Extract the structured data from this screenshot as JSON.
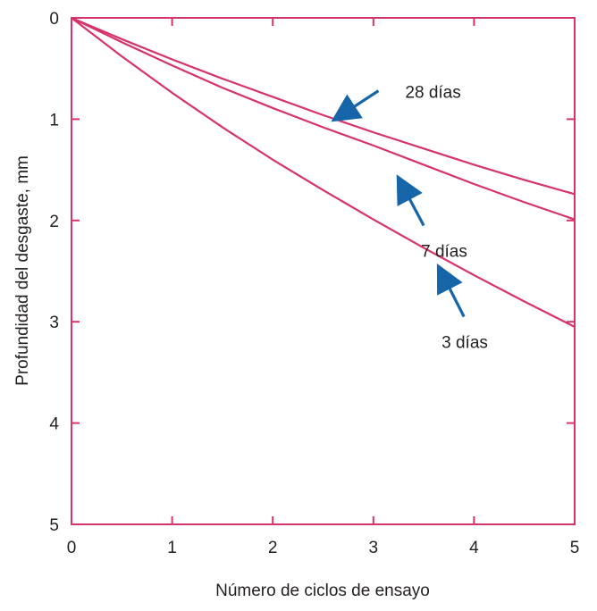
{
  "chart_data": {
    "type": "line",
    "title": "",
    "xlabel": "Número de ciclos de ensayo",
    "ylabel": "Profundidad del desgaste, mm",
    "xlim": [
      0,
      5
    ],
    "ylim": [
      0,
      5
    ],
    "y_inverted": true,
    "x_ticks": [
      "0",
      "1",
      "2",
      "3",
      "4",
      "5"
    ],
    "y_ticks": [
      "0",
      "1",
      "2",
      "3",
      "4",
      "5"
    ],
    "grid": false,
    "series": [
      {
        "name": "28 días",
        "x": [
          0,
          0.5,
          1,
          1.5,
          2,
          2.5,
          3,
          3.5,
          4,
          4.5,
          5
        ],
        "y": [
          0,
          0.21,
          0.41,
          0.6,
          0.78,
          0.96,
          1.13,
          1.29,
          1.45,
          1.6,
          1.74
        ]
      },
      {
        "name": "7 días",
        "x": [
          0,
          0.5,
          1,
          1.5,
          2,
          2.5,
          3,
          3.5,
          4,
          4.5,
          5
        ],
        "y": [
          0,
          0.24,
          0.47,
          0.69,
          0.89,
          1.08,
          1.26,
          1.45,
          1.64,
          1.82,
          1.99
        ]
      },
      {
        "name": "3 días",
        "x": [
          0,
          0.5,
          1,
          1.5,
          2,
          2.5,
          3,
          3.5,
          4,
          4.5,
          5
        ],
        "y": [
          0,
          0.38,
          0.74,
          1.08,
          1.4,
          1.7,
          1.99,
          2.27,
          2.54,
          2.8,
          3.05
        ]
      }
    ],
    "annotations": [
      {
        "text": "28 días",
        "series": "28 días",
        "arrow_tip": [
          2.65,
          0.98
        ],
        "arrow_tail": [
          3.05,
          0.72
        ]
      },
      {
        "text": "7 días",
        "series": "7 días",
        "arrow_tip": [
          3.27,
          1.62
        ],
        "arrow_tail": [
          3.5,
          2.05
        ]
      },
      {
        "text": "3 días",
        "series": "3 días",
        "arrow_tip": [
          3.67,
          2.5
        ],
        "arrow_tail": [
          3.9,
          2.95
        ]
      }
    ],
    "colors": {
      "frame": "#d6336c",
      "lines": "#d6336c",
      "arrows": "#1565a8",
      "text": "#231f20"
    }
  }
}
